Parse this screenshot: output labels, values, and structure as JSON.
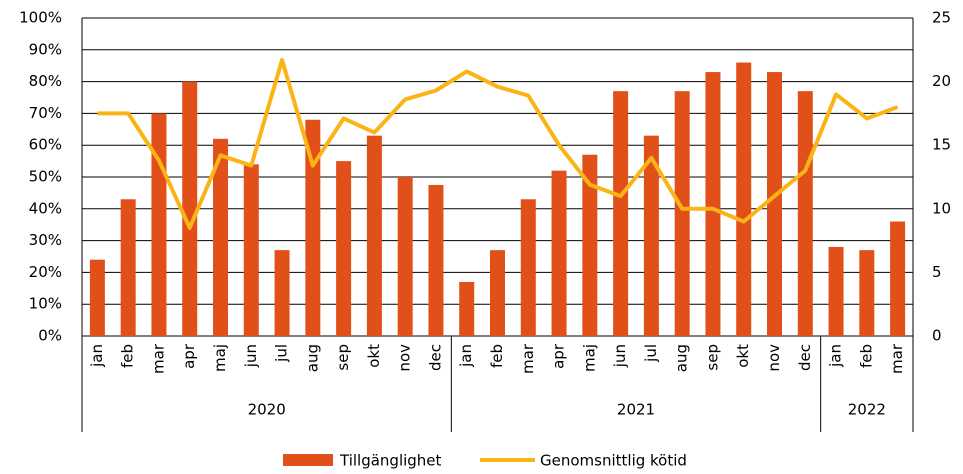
{
  "chart_data": {
    "type": "bar-line",
    "category_groups": [
      {
        "name": "2020",
        "categories": [
          "jan",
          "feb",
          "mar",
          "apr",
          "maj",
          "jun",
          "jul",
          "aug",
          "sep",
          "okt",
          "nov",
          "dec"
        ]
      },
      {
        "name": "2021",
        "categories": [
          "jan",
          "feb",
          "mar",
          "apr",
          "maj",
          "jun",
          "jul",
          "aug",
          "sep",
          "okt",
          "nov",
          "dec"
        ]
      },
      {
        "name": "2022",
        "categories": [
          "jan",
          "feb",
          "mar"
        ]
      }
    ],
    "series": [
      {
        "name": "Tillgänglighet",
        "type": "bar",
        "color": "#e2501a",
        "axis": "y",
        "values": [
          24,
          43,
          70,
          80,
          62,
          54,
          27,
          68,
          55,
          63,
          50,
          47.5,
          17,
          27,
          43,
          52,
          57,
          77,
          63,
          77,
          83,
          86,
          83,
          77,
          28,
          27,
          36
        ]
      },
      {
        "name": "Genomsnittlig kötid",
        "type": "line",
        "color": "#fbb416",
        "axis": "y2",
        "values": [
          17.5,
          17.5,
          13.8,
          8.5,
          14.2,
          13.4,
          21.7,
          13.4,
          17.1,
          16,
          18.6,
          19.3,
          20.8,
          19.6,
          18.9,
          15,
          11.9,
          11,
          14,
          10,
          10,
          9,
          11,
          13,
          19,
          17.1,
          18
        ]
      }
    ],
    "ylim": [
      0,
      100
    ],
    "yticks": [
      {
        "value": 0,
        "label": "0%"
      },
      {
        "value": 10,
        "label": "10%"
      },
      {
        "value": 20,
        "label": "20%"
      },
      {
        "value": 30,
        "label": "30%"
      },
      {
        "value": 40,
        "label": "40%"
      },
      {
        "value": 50,
        "label": "50%"
      },
      {
        "value": 60,
        "label": "60%"
      },
      {
        "value": 70,
        "label": "70%"
      },
      {
        "value": 80,
        "label": "80%"
      },
      {
        "value": 90,
        "label": "90%"
      },
      {
        "value": 100,
        "label": "100%"
      }
    ],
    "y2lim": [
      0,
      25
    ],
    "y2ticks": [
      0,
      5,
      10,
      15,
      20,
      25
    ],
    "grid": true,
    "legend": "bottom"
  }
}
